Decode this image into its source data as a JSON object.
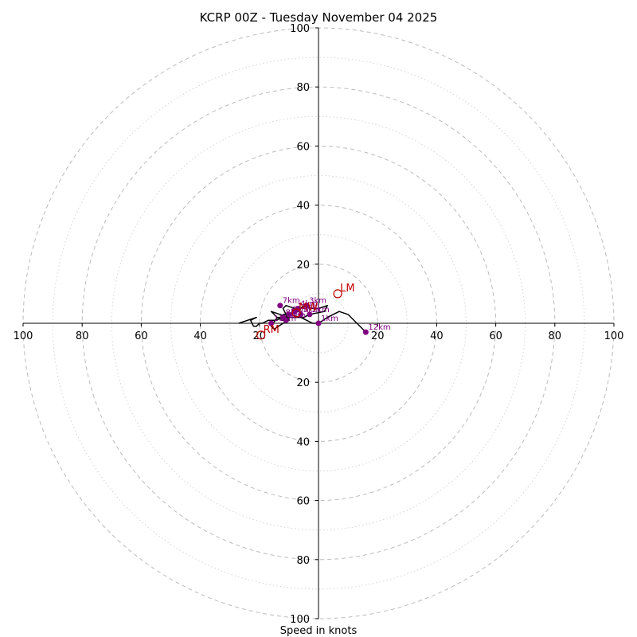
{
  "chart_data": {
    "type": "hodograph",
    "title": "KCRP 00Z - Tuesday November 04 2025",
    "xlabel": "Speed in knots",
    "ylabel": "",
    "rings_major": [
      20,
      40,
      60,
      80,
      100
    ],
    "rings_minor": [
      10,
      30,
      50,
      70,
      90
    ],
    "axis_ticks": {
      "left": [
        "100",
        "80",
        "60",
        "40",
        "20"
      ],
      "right": [
        "20",
        "40",
        "60",
        "80",
        "100"
      ],
      "top": [
        "100",
        "80",
        "60",
        "40",
        "20"
      ],
      "bottom": [
        "20",
        "40",
        "60",
        "80",
        "100"
      ]
    },
    "xlim": [
      -100,
      100
    ],
    "ylim": [
      -100,
      100
    ],
    "units": "knots",
    "colors": {
      "trace": "#000000",
      "height_marker": "#800080",
      "storm_motion": "#c00000",
      "grid": "#bbbbbb"
    },
    "hodograph": {
      "u": [
        16,
        10,
        7,
        3,
        0,
        -2,
        -4,
        -6,
        -10,
        -12,
        -11,
        -14,
        -16,
        -13,
        -10,
        -5,
        -3,
        2,
        3,
        0,
        -2,
        -5,
        -7,
        -8,
        -11,
        -12,
        -11,
        -10,
        -12,
        -15,
        -16,
        -14,
        -12,
        -10,
        -11,
        -15,
        -17,
        -19,
        -20,
        -21,
        -22,
        -23,
        -21,
        -27
      ],
      "v": [
        -3,
        3,
        4,
        2,
        0,
        0,
        1,
        2,
        3,
        3,
        2,
        2,
        4,
        3,
        2,
        2,
        3,
        4,
        6,
        5,
        5,
        6,
        4,
        5,
        6,
        5,
        3,
        1,
        0,
        -2,
        -1,
        2,
        1,
        2,
        2,
        1,
        1,
        0,
        0,
        -1,
        -1,
        1,
        2,
        0
      ]
    },
    "height_markers": [
      {
        "label": "1km",
        "u": 0,
        "v": 0
      },
      {
        "label": "2km",
        "u": -3,
        "v": 3
      },
      {
        "label": "3km",
        "u": -4,
        "v": 6
      },
      {
        "label": "4km",
        "u": -7,
        "v": 5
      },
      {
        "label": "5km",
        "u": -6,
        "v": 3
      },
      {
        "label": "6km",
        "u": -10,
        "v": 3
      },
      {
        "label": "7km",
        "u": -13,
        "v": 6
      },
      {
        "label": "8km",
        "u": -12,
        "v": 2
      },
      {
        "label": "9km",
        "u": -11,
        "v": 1
      },
      {
        "label": "10km",
        "u": -8,
        "v": 4
      },
      {
        "label": "11km",
        "u": -16,
        "v": 0
      },
      {
        "label": "12km",
        "u": 16,
        "v": -3
      }
    ],
    "storm_motions": [
      {
        "label": "LM",
        "u": 6.5,
        "v": 10
      },
      {
        "label": "RM",
        "u": -19.5,
        "v": -4
      },
      {
        "label": "MW",
        "u": -7.5,
        "v": 3.5
      }
    ]
  }
}
